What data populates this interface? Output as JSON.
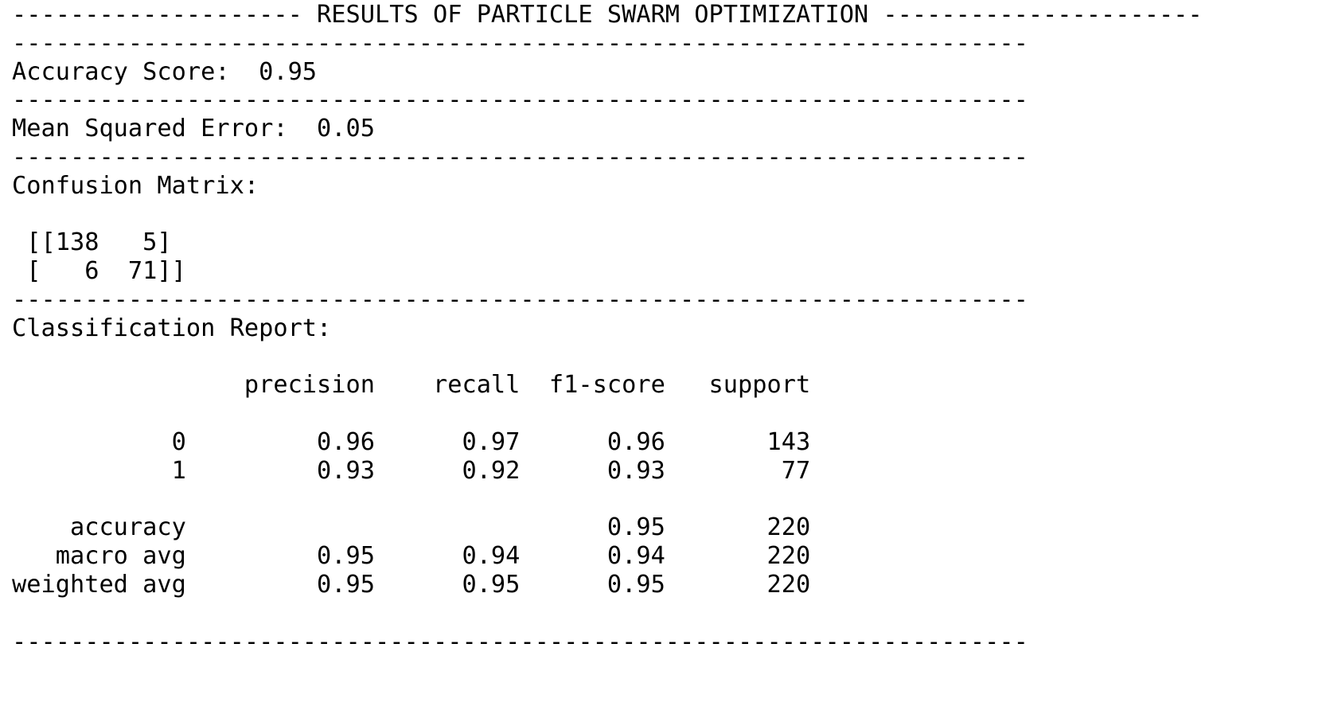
{
  "header": {
    "title": "-------------------- RESULTS OF PARTICLE SWARM OPTIMIZATION ----------------------"
  },
  "divider": "----------------------------------------------------------------------",
  "accuracy": {
    "label": "Accuracy Score:",
    "value": "0.95"
  },
  "mse": {
    "label": "Mean Squared Error:",
    "value": "0.05"
  },
  "confusion_matrix": {
    "label": "Confusion Matrix:",
    "rows": [
      [
        138,
        5
      ],
      [
        6,
        71
      ]
    ]
  },
  "classification_report": {
    "label": "Classification Report:",
    "columns": [
      "precision",
      "recall",
      "f1-score",
      "support"
    ],
    "rows": [
      {
        "label": "0",
        "precision": "0.96",
        "recall": "0.97",
        "f1": "0.96",
        "support": "143"
      },
      {
        "label": "1",
        "precision": "0.93",
        "recall": "0.92",
        "f1": "0.93",
        "support": "77"
      }
    ],
    "summary": [
      {
        "label": "accuracy",
        "precision": "",
        "recall": "",
        "f1": "0.95",
        "support": "220"
      },
      {
        "label": "macro avg",
        "precision": "0.95",
        "recall": "0.94",
        "f1": "0.94",
        "support": "220"
      },
      {
        "label": "weighted avg",
        "precision": "0.95",
        "recall": "0.95",
        "f1": "0.95",
        "support": "220"
      }
    ]
  }
}
